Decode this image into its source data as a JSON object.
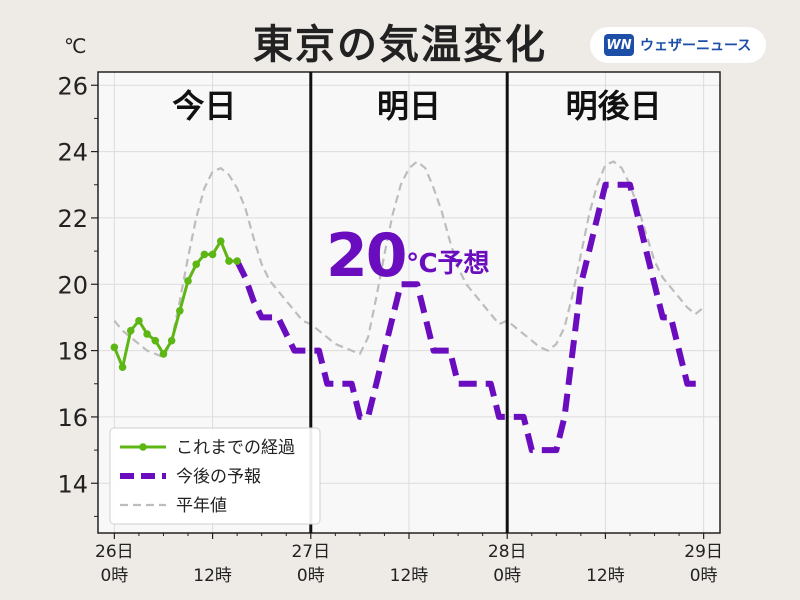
{
  "title": "東京の気温変化",
  "logo": {
    "mark": "WN",
    "text": "ウェザーニュース"
  },
  "unit": "℃",
  "day_labels": [
    "今日",
    "明日",
    "明後日"
  ],
  "forecast_note": {
    "value": "20",
    "suffix": "℃予想"
  },
  "legend": [
    "これまでの経過",
    "今後の予報",
    "平年値"
  ],
  "colors": {
    "observed": "#5cb614",
    "forecast": "#6a0dbf",
    "normal": "#bdbdbd"
  },
  "chart_data": {
    "type": "line",
    "x_unit": "hours from 26日 0時",
    "xlim": [
      -2,
      74
    ],
    "ylim": [
      12.5,
      26.4
    ],
    "yticks": [
      14,
      16,
      18,
      20,
      22,
      24,
      26
    ],
    "xticks": [
      {
        "x": 0,
        "label": [
          "26日",
          "0時"
        ]
      },
      {
        "x": 12,
        "label": [
          "",
          "12時"
        ]
      },
      {
        "x": 24,
        "label": [
          "27日",
          "0時"
        ]
      },
      {
        "x": 36,
        "label": [
          "",
          "12時"
        ]
      },
      {
        "x": 48,
        "label": [
          "28日",
          "0時"
        ]
      },
      {
        "x": 60,
        "label": [
          "",
          "12時"
        ]
      },
      {
        "x": 72,
        "label": [
          "29日",
          "0時"
        ]
      }
    ],
    "day_dividers": [
      24,
      48
    ],
    "grid": true,
    "legend_position": "bottom-left",
    "series": [
      {
        "name": "これまでの経過",
        "style": "solid-markers",
        "x": [
          0,
          1,
          2,
          3,
          4,
          5,
          6,
          7,
          8,
          9,
          10,
          11,
          12,
          13,
          14,
          15
        ],
        "y": [
          18.1,
          17.5,
          18.6,
          18.9,
          18.5,
          18.3,
          17.9,
          18.3,
          19.2,
          20.1,
          20.6,
          20.9,
          20.9,
          21.3,
          20.7,
          20.7
        ]
      },
      {
        "name": "今後の予報",
        "style": "dashed",
        "x": [
          15,
          16,
          17,
          18,
          19,
          20,
          21,
          22,
          23,
          24,
          25,
          26,
          27,
          28,
          29,
          30,
          31,
          32,
          33,
          34,
          35,
          36,
          37,
          38,
          39,
          40,
          41,
          42,
          43,
          44,
          45,
          46,
          47,
          48,
          49,
          50,
          51,
          52,
          53,
          54,
          55,
          56,
          57,
          58,
          59,
          60,
          61,
          62,
          63,
          64,
          65,
          66,
          67,
          68,
          69,
          70,
          71,
          72
        ],
        "y": [
          20.7,
          20.2,
          19.5,
          19.0,
          19.0,
          19.0,
          18.5,
          18.0,
          18.0,
          18.0,
          18.0,
          17.0,
          17.0,
          17.0,
          17.0,
          16.0,
          16.0,
          17.0,
          18.0,
          19.0,
          20.0,
          20.0,
          20.0,
          19.0,
          18.0,
          18.0,
          18.0,
          17.0,
          17.0,
          17.0,
          17.0,
          17.0,
          16.0,
          16.0,
          16.0,
          16.0,
          15.0,
          15.0,
          15.0,
          15.0,
          16.0,
          18.0,
          20.0,
          21.0,
          22.0,
          23.0,
          23.0,
          23.0,
          23.0,
          22.0,
          21.0,
          20.0,
          19.0,
          19.0,
          18.0,
          17.0,
          17.0,
          17.0
        ]
      },
      {
        "name": "平年値",
        "style": "dashed-thin",
        "x": [
          0,
          1,
          2,
          3,
          4,
          5,
          6,
          7,
          8,
          9,
          10,
          11,
          12,
          13,
          14,
          15,
          16,
          17,
          18,
          19,
          20,
          21,
          22,
          23,
          24,
          25,
          26,
          27,
          28,
          29,
          30,
          31,
          32,
          33,
          34,
          35,
          36,
          37,
          38,
          39,
          40,
          41,
          42,
          43,
          44,
          45,
          46,
          47,
          48,
          49,
          50,
          51,
          52,
          53,
          54,
          55,
          56,
          57,
          58,
          59,
          60,
          61,
          62,
          63,
          64,
          65,
          66,
          67,
          68,
          69,
          70,
          71,
          72
        ],
        "y": [
          18.9,
          18.6,
          18.4,
          18.2,
          18.0,
          17.9,
          17.8,
          18.3,
          19.5,
          20.8,
          22.0,
          22.9,
          23.4,
          23.5,
          23.3,
          22.9,
          22.3,
          21.4,
          20.6,
          20.1,
          19.8,
          19.5,
          19.2,
          18.9,
          18.8,
          18.6,
          18.4,
          18.2,
          18.1,
          18.0,
          17.9,
          18.4,
          19.6,
          20.9,
          22.1,
          23.0,
          23.5,
          23.7,
          23.5,
          22.9,
          22.2,
          21.3,
          20.5,
          20.0,
          19.7,
          19.4,
          19.1,
          18.8,
          18.9,
          18.7,
          18.5,
          18.3,
          18.1,
          18.0,
          18.2,
          18.7,
          19.7,
          20.9,
          22.1,
          23.0,
          23.6,
          23.7,
          23.5,
          23.0,
          22.3,
          21.5,
          20.7,
          20.2,
          19.9,
          19.6,
          19.3,
          19.1,
          19.3
        ]
      }
    ]
  }
}
